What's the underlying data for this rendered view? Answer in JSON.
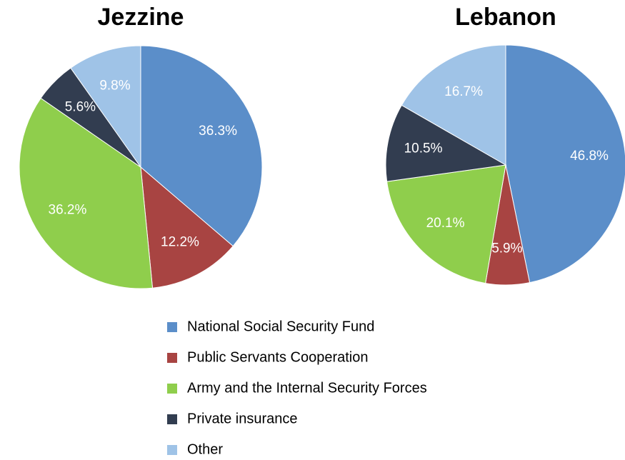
{
  "chart_data": [
    {
      "type": "pie",
      "title": "Jezzine",
      "values": [
        36.3,
        12.2,
        36.2,
        5.6,
        9.8
      ],
      "value_labels": [
        "36.3%",
        "12.2%",
        "36.2%",
        "5.6%",
        "9.8%"
      ]
    },
    {
      "type": "pie",
      "title": "Lebanon",
      "values": [
        46.8,
        5.9,
        20.1,
        10.5,
        16.7
      ],
      "value_labels": [
        "46.8%",
        "5.9%",
        "20.1%",
        "10.5%",
        "16.7%"
      ]
    }
  ],
  "legend": {
    "labels": [
      "National Social Security Fund",
      "Public Servants Cooperation",
      "Army and the Internal Security Forces",
      "Private insurance",
      "Other"
    ],
    "colors": [
      "#5b8ec9",
      "#a84442",
      "#8fce4c",
      "#323d50",
      "#9fc3e7"
    ]
  }
}
